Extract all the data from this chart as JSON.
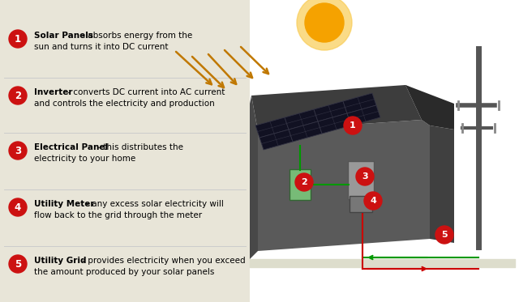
{
  "steps": [
    {
      "number": "1",
      "bold_text": "Solar Panels",
      "desc1": " - absorbs energy from the",
      "desc2": "sun and turns it into DC current"
    },
    {
      "number": "2",
      "bold_text": "Inverter",
      "desc1": " - converts DC current into AC current",
      "desc2": "and controls the electricity and production"
    },
    {
      "number": "3",
      "bold_text": "Electrical Panel",
      "desc1": " - this distributes the",
      "desc2": "electricity to your home"
    },
    {
      "number": "4",
      "bold_text": "Utility Meter",
      "desc1": " - any excess solar electricity will",
      "desc2": "flow back to the grid through the meter"
    },
    {
      "number": "5",
      "bold_text": "Utility Grid",
      "desc1": " - provides electricity when you exceed",
      "desc2": "the amount produced by your solar panels"
    }
  ],
  "red_color": "#cc1111",
  "sun_color": "#f5a200",
  "sun_outer": "#f9cc55",
  "house_roof_top": "#3a3a3a",
  "house_body": "#666666",
  "house_side": "#4a4a4a",
  "panel_dark": "#111122",
  "pole_color": "#555555",
  "arrow_color": "#c07800",
  "green_line": "#009900",
  "red_line": "#cc0000",
  "label_bg": "#e8e5d8",
  "divider_color": "#cccccc"
}
